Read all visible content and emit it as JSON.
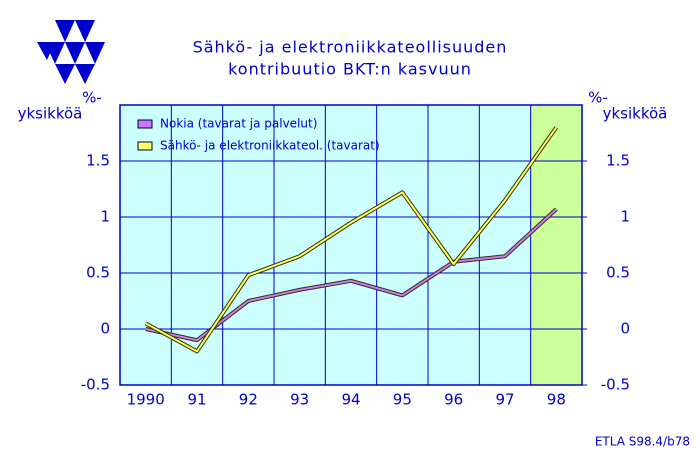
{
  "chart_data": {
    "type": "line",
    "title": [
      "Sähkö- ja elektroniikkateollisuuden",
      "kontribuutio BKT:n kasvuun"
    ],
    "y_label": [
      "%-",
      "yksikköä"
    ],
    "y2_label": [
      "%-",
      "yksikköä"
    ],
    "categories": [
      "1990",
      "91",
      "92",
      "93",
      "94",
      "95",
      "96",
      "97",
      "98"
    ],
    "series": [
      {
        "name": "Nokia (tavarat ja palvelut)",
        "color": "#cc77ff",
        "values": [
          0.0,
          -0.1,
          0.25,
          0.35,
          0.43,
          0.3,
          0.6,
          0.65,
          1.07
        ]
      },
      {
        "name": "Sähkö- ja elektroniikkateol. (tavarat)",
        "color": "#ffff66",
        "values": [
          0.05,
          -0.2,
          0.48,
          0.65,
          0.95,
          1.22,
          0.58,
          1.15,
          1.8
        ]
      }
    ],
    "ylim": [
      -0.5,
      2.0
    ],
    "yticks": [
      -0.5,
      0,
      0.5,
      1,
      1.5
    ],
    "y2lim": [
      -0.5,
      2.0
    ],
    "y2ticks": [
      -0.5,
      0,
      0.5,
      1,
      1.5
    ],
    "grid": true,
    "legend": "upper left",
    "shaded_category": "98",
    "plot_color": "#ccffff",
    "shade_color": "#ccff99",
    "source": "ETLA S98.4/b78"
  }
}
